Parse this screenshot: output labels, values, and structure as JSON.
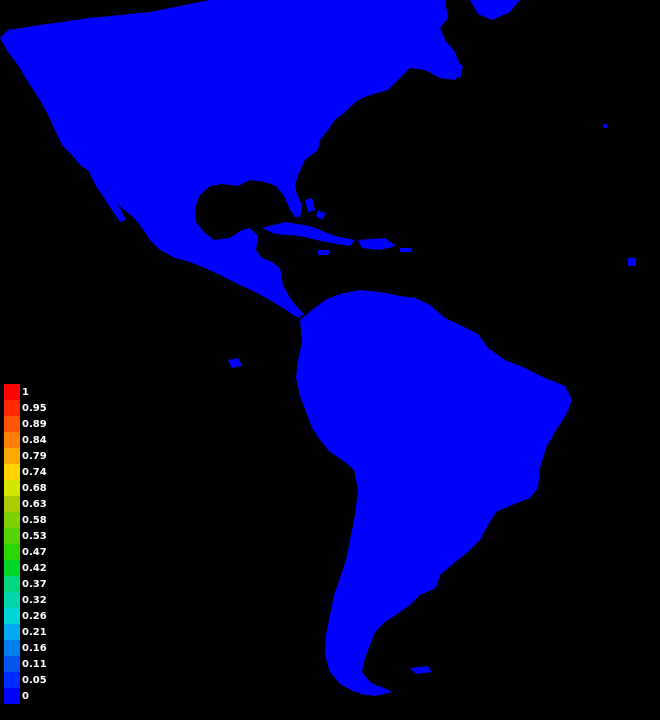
{
  "map": {
    "region": "Americas",
    "background_color": "#000000",
    "land_color": "#0000ff"
  },
  "legend": {
    "entries": [
      {
        "label": "1",
        "color": "#ff0000"
      },
      {
        "label": "0.95",
        "color": "#ff2a00"
      },
      {
        "label": "0.89",
        "color": "#ff5500"
      },
      {
        "label": "0.84",
        "color": "#ff8000"
      },
      {
        "label": "0.79",
        "color": "#ffaa00"
      },
      {
        "label": "0.74",
        "color": "#ffd500"
      },
      {
        "label": "0.68",
        "color": "#d5e600"
      },
      {
        "label": "0.63",
        "color": "#aacc00"
      },
      {
        "label": "0.58",
        "color": "#80d000"
      },
      {
        "label": "0.53",
        "color": "#55d500"
      },
      {
        "label": "0.47",
        "color": "#2ad500"
      },
      {
        "label": "0.42",
        "color": "#00d52a"
      },
      {
        "label": "0.37",
        "color": "#00d580"
      },
      {
        "label": "0.32",
        "color": "#00d5aa"
      },
      {
        "label": "0.26",
        "color": "#00d5d5"
      },
      {
        "label": "0.21",
        "color": "#00aaee"
      },
      {
        "label": "0.16",
        "color": "#0080ee"
      },
      {
        "label": "0.11",
        "color": "#0055ee"
      },
      {
        "label": "0.05",
        "color": "#002aff"
      },
      {
        "label": "0",
        "color": "#0000ff"
      }
    ]
  }
}
